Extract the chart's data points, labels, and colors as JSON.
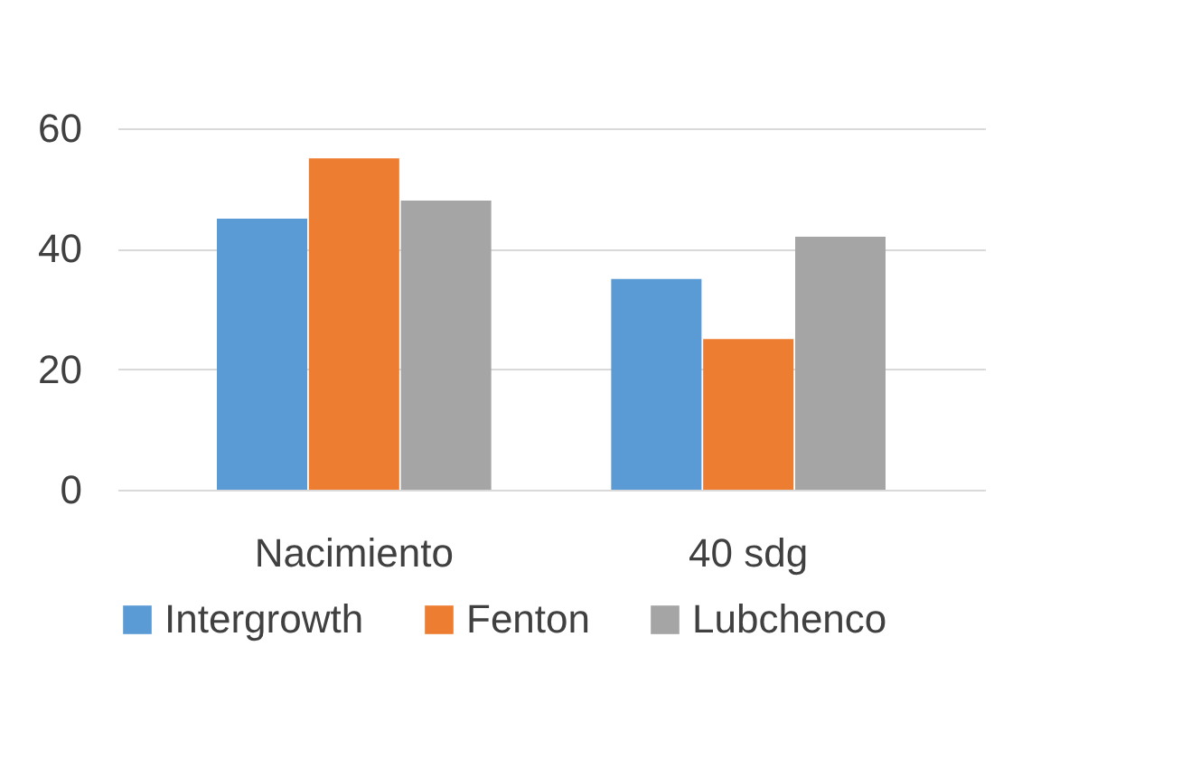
{
  "chart_data": {
    "type": "bar",
    "categories": [
      "Nacimiento",
      "40 sdg"
    ],
    "series": [
      {
        "name": "Intergrowth",
        "color": "#5b9bd5",
        "values": [
          45,
          35
        ]
      },
      {
        "name": "Fenton",
        "color": "#ed7d31",
        "values": [
          55,
          25
        ]
      },
      {
        "name": "Lubchenco",
        "color": "#a5a5a5",
        "values": [
          48,
          42
        ]
      }
    ],
    "ylim": [
      0,
      60
    ],
    "yticks": [
      0,
      20,
      40,
      60
    ],
    "grid": "y",
    "legend": "bottom"
  }
}
